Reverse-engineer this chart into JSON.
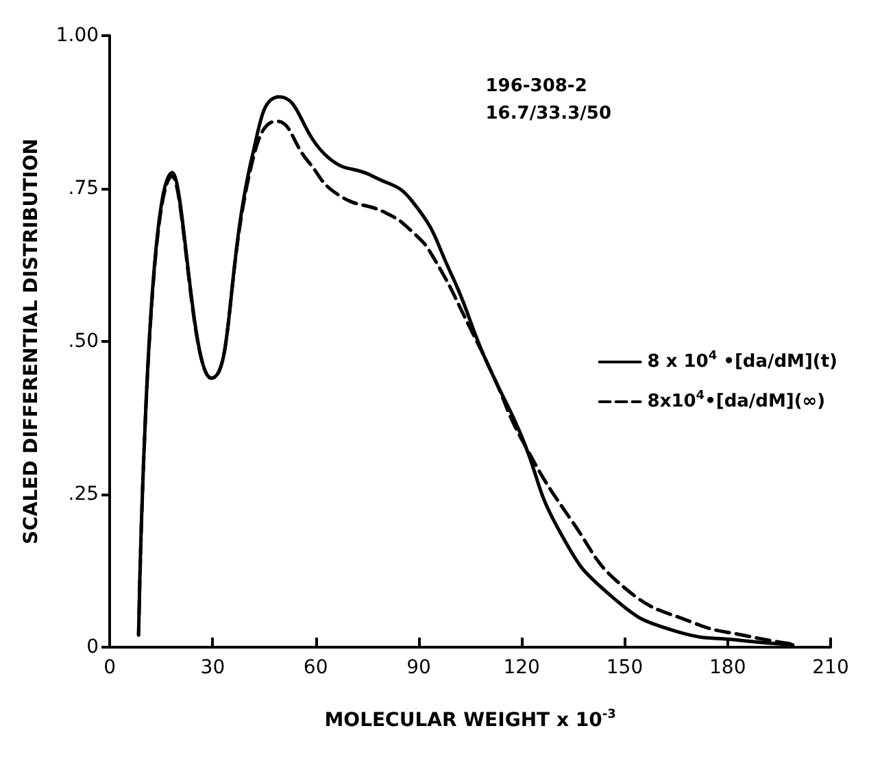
{
  "chart_data": {
    "type": "line",
    "xlabel": "MOLECULAR WEIGHT x 10$^{-3}$",
    "ylabel": "SCALED DIFFERENTIAL DISTRIBUTION",
    "annotations": [
      "196-308-2",
      "16.7/33.3/50"
    ],
    "xlim": [
      0,
      210
    ],
    "xticks": [
      0,
      30,
      60,
      90,
      120,
      150,
      180,
      210
    ],
    "ylim": [
      0,
      1
    ],
    "yticks": [
      0,
      {
        "value": 0.25,
        "label": ".25"
      },
      {
        "value": 0.5,
        "label": ".50"
      },
      {
        "value": 0.75,
        "label": ".75"
      },
      {
        "value": 1,
        "label": "1.00"
      }
    ],
    "grid": false,
    "legend": "right",
    "marker": "none",
    "series": [
      {
        "name": "8 x 10$^{4}$ •[da/dM](t)",
        "color": "#000000",
        "line_style": "solid",
        "x": [
          8.4,
          18.2,
          29.6,
          41.8,
          49.4,
          63.8,
          76.7,
          88,
          99.5,
          108,
          112,
          119.6,
          131,
          146,
          165,
          184,
          199
        ],
        "values": [
          0.02,
          0.776,
          0.44,
          0.81,
          0.9,
          0.8,
          0.77,
          0.73,
          0.61,
          0.49,
          0.44,
          0.35,
          0.19,
          0.084,
          0.026,
          0.011,
          0.004
        ]
      },
      {
        "name": "8x10$^{4}$•[da/dM](∞)",
        "color": "#000000",
        "line_style": "dashed",
        "x": [
          8.4,
          18.2,
          29.6,
          41.8,
          48.6,
          57.7,
          66.5,
          80.5,
          88,
          94,
          105.6,
          112,
          120,
          134.8,
          150,
          170,
          185,
          200
        ],
        "values": [
          0.02,
          0.77,
          0.44,
          0.8,
          0.86,
          0.795,
          0.74,
          0.71,
          0.68,
          0.64,
          0.515,
          0.44,
          0.34,
          0.205,
          0.097,
          0.04,
          0.019,
          0.004
        ]
      }
    ]
  }
}
